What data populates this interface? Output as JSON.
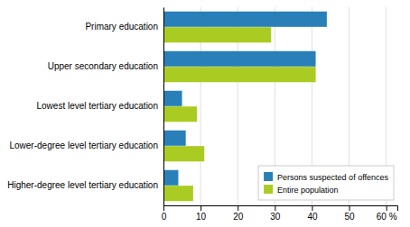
{
  "chart_data": {
    "type": "bar",
    "orientation": "horizontal",
    "categories": [
      "Primary education",
      "Upper secondary education",
      "Lowest level tertiary education",
      "Lower-degree level tertiary education",
      "Higher-degree level tertiary education"
    ],
    "series": [
      {
        "name": "Persons suspected of offences",
        "color": "#2980B9",
        "values": [
          44,
          41,
          5,
          6,
          4
        ]
      },
      {
        "name": "Entire population",
        "color": "#AACC22",
        "values": [
          29,
          41,
          9,
          11,
          8
        ]
      }
    ],
    "xlim": [
      0,
      63
    ],
    "xticks": [
      0,
      10,
      20,
      30,
      40,
      50,
      {
        "value": 60,
        "label": "60 %"
      }
    ],
    "grid": true,
    "legend": "lower right"
  }
}
